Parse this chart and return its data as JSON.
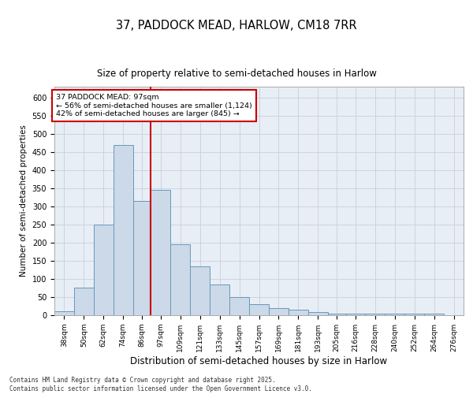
{
  "title1": "37, PADDOCK MEAD, HARLOW, CM18 7RR",
  "title2": "Size of property relative to semi-detached houses in Harlow",
  "xlabel": "Distribution of semi-detached houses by size in Harlow",
  "ylabel": "Number of semi-detached properties",
  "footnote": "Contains HM Land Registry data © Crown copyright and database right 2025.\nContains public sector information licensed under the Open Government Licence v3.0.",
  "annotation_title": "37 PADDOCK MEAD: 97sqm",
  "annotation_line1": "← 56% of semi-detached houses are smaller (1,124)",
  "annotation_line2": "42% of semi-detached houses are larger (845) →",
  "property_size": 97,
  "bar_color": "#ccd9e8",
  "bar_edge_color": "#6699bb",
  "vline_color": "#cc0000",
  "grid_color": "#c8d0dc",
  "bg_color": "#e8eef6",
  "categories": [
    "38sqm",
    "50sqm",
    "62sqm",
    "74sqm",
    "86sqm",
    "97sqm",
    "109sqm",
    "121sqm",
    "133sqm",
    "145sqm",
    "157sqm",
    "169sqm",
    "181sqm",
    "193sqm",
    "205sqm",
    "216sqm",
    "228sqm",
    "240sqm",
    "252sqm",
    "264sqm",
    "276sqm"
  ],
  "bin_edges": [
    38,
    50,
    62,
    74,
    86,
    97,
    109,
    121,
    133,
    145,
    157,
    169,
    181,
    193,
    205,
    216,
    228,
    240,
    252,
    264,
    276
  ],
  "values": [
    10,
    75,
    250,
    470,
    315,
    345,
    195,
    135,
    85,
    50,
    30,
    20,
    15,
    8,
    5,
    5,
    5,
    5,
    5,
    5
  ],
  "ylim": [
    0,
    630
  ],
  "yticks": [
    0,
    50,
    100,
    150,
    200,
    250,
    300,
    350,
    400,
    450,
    500,
    550,
    600
  ]
}
